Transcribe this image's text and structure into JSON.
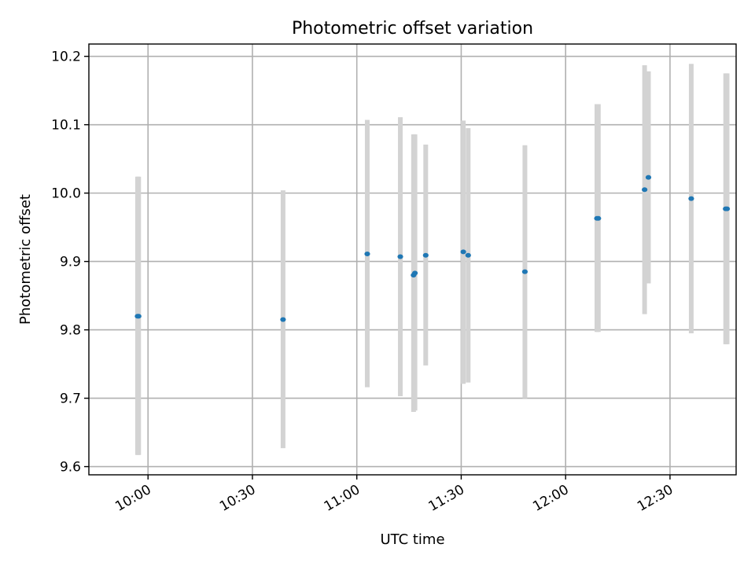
{
  "chart_data": {
    "type": "scatter",
    "title": "Photometric offset variation",
    "xlabel": "UTC time",
    "ylabel": "Photometric offset",
    "grid": true,
    "xlim_minutes": [
      583,
      769
    ],
    "ylim": [
      9.588,
      10.218
    ],
    "x_ticks": [
      {
        "minutes": 600,
        "label": "10:00"
      },
      {
        "minutes": 630,
        "label": "10:30"
      },
      {
        "minutes": 660,
        "label": "11:00"
      },
      {
        "minutes": 690,
        "label": "11:30"
      },
      {
        "minutes": 720,
        "label": "12:00"
      },
      {
        "minutes": 750,
        "label": "12:30"
      }
    ],
    "y_ticks": [
      {
        "value": 9.6,
        "label": "9.6"
      },
      {
        "value": 9.7,
        "label": "9.7"
      },
      {
        "value": 9.8,
        "label": "9.8"
      },
      {
        "value": 9.9,
        "label": "9.9"
      },
      {
        "value": 10.0,
        "label": "10.0"
      },
      {
        "value": 10.1,
        "label": "10.1"
      },
      {
        "value": 10.2,
        "label": "10.2"
      }
    ],
    "colors": {
      "point": "#1f77b4",
      "error_bar": "#d3d3d3"
    },
    "points": [
      {
        "time": "09:57",
        "minutes": 597.0,
        "y": 9.82,
        "y_low": 9.617,
        "y_high": 10.024
      },
      {
        "time": "09:57",
        "minutes": 597.3,
        "y": 9.82,
        "y_low": 9.617,
        "y_high": 10.024
      },
      {
        "time": "10:39",
        "minutes": 638.8,
        "y": 9.815,
        "y_low": 9.627,
        "y_high": 10.004
      },
      {
        "time": "11:03",
        "minutes": 663.0,
        "y": 9.911,
        "y_low": 9.716,
        "y_high": 10.107
      },
      {
        "time": "11:12",
        "minutes": 672.5,
        "y": 9.907,
        "y_low": 9.703,
        "y_high": 10.111
      },
      {
        "time": "11:16",
        "minutes": 676.3,
        "y": 9.88,
        "y_low": 9.68,
        "y_high": 10.086
      },
      {
        "time": "11:16",
        "minutes": 676.7,
        "y": 9.883,
        "y_low": 9.682,
        "y_high": 10.086
      },
      {
        "time": "11:20",
        "minutes": 679.8,
        "y": 9.909,
        "y_low": 9.748,
        "y_high": 10.071
      },
      {
        "time": "11:30",
        "minutes": 690.6,
        "y": 9.914,
        "y_low": 9.721,
        "y_high": 10.106
      },
      {
        "time": "11:32",
        "minutes": 692.0,
        "y": 9.909,
        "y_low": 9.723,
        "y_high": 10.095
      },
      {
        "time": "11:48",
        "minutes": 708.3,
        "y": 9.885,
        "y_low": 9.7,
        "y_high": 10.07
      },
      {
        "time": "12:09",
        "minutes": 729.0,
        "y": 9.963,
        "y_low": 9.797,
        "y_high": 10.13
      },
      {
        "time": "12:09",
        "minutes": 729.4,
        "y": 9.963,
        "y_low": 9.797,
        "y_high": 10.13
      },
      {
        "time": "12:22",
        "minutes": 742.7,
        "y": 10.005,
        "y_low": 9.823,
        "y_high": 10.187
      },
      {
        "time": "12:23",
        "minutes": 743.8,
        "y": 10.023,
        "y_low": 9.868,
        "y_high": 10.178
      },
      {
        "time": "12:36",
        "minutes": 756.1,
        "y": 9.992,
        "y_low": 9.795,
        "y_high": 10.189
      },
      {
        "time": "12:46",
        "minutes": 766.0,
        "y": 9.977,
        "y_low": 9.779,
        "y_high": 10.175
      },
      {
        "time": "12:46",
        "minutes": 766.4,
        "y": 9.977,
        "y_low": 9.779,
        "y_high": 10.175
      }
    ]
  }
}
